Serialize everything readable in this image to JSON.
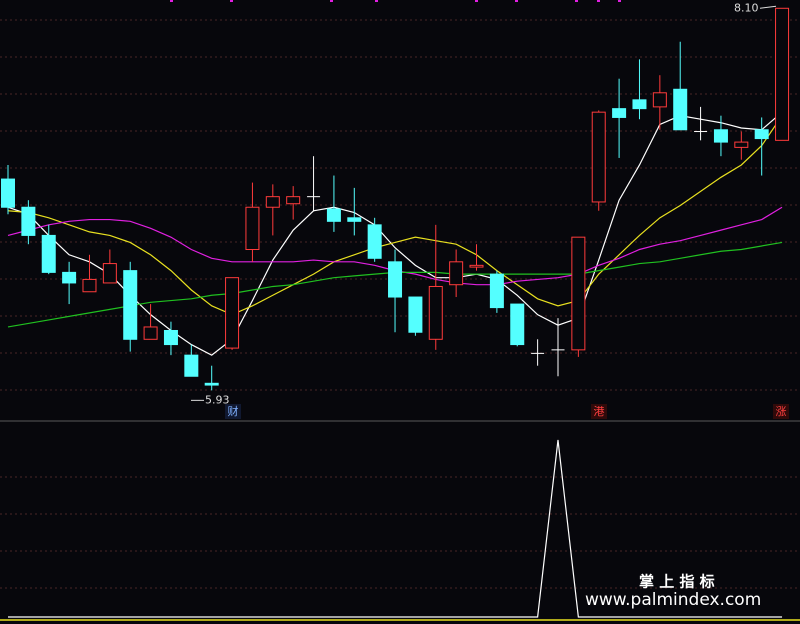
{
  "chart_data": [
    {
      "type": "candlestick",
      "ylim": [
        5.79,
        8.13
      ],
      "up_color": "#ff3b3b",
      "down_color": "#54ffff",
      "doji_color": "#ffffff",
      "candles": [
        [
          7.13,
          7.21,
          6.93,
          6.97
        ],
        [
          6.97,
          7.01,
          6.76,
          6.81
        ],
        [
          6.81,
          6.87,
          6.59,
          6.6
        ],
        [
          6.6,
          6.66,
          6.42,
          6.54
        ],
        [
          6.49,
          6.7,
          6.49,
          6.56
        ],
        [
          6.54,
          6.73,
          6.54,
          6.65
        ],
        [
          6.61,
          6.66,
          6.15,
          6.22
        ],
        [
          6.22,
          6.42,
          6.22,
          6.29
        ],
        [
          6.27,
          6.32,
          6.13,
          6.19
        ],
        [
          6.13,
          6.19,
          6.01,
          6.01
        ],
        [
          5.97,
          6.07,
          5.93,
          5.96
        ],
        [
          6.17,
          6.57,
          6.16,
          6.57
        ],
        [
          6.73,
          7.11,
          6.66,
          6.97
        ],
        [
          6.97,
          7.1,
          6.81,
          7.03
        ],
        [
          6.99,
          7.09,
          6.9,
          7.03
        ],
        [
          7.03,
          7.26,
          6.95,
          7.03
        ],
        [
          6.96,
          7.15,
          6.83,
          6.89
        ],
        [
          6.91,
          7.08,
          6.81,
          6.89
        ],
        [
          6.87,
          6.91,
          6.66,
          6.68
        ],
        [
          6.66,
          6.73,
          6.26,
          6.46
        ],
        [
          6.46,
          6.46,
          6.24,
          6.26
        ],
        [
          6.22,
          6.87,
          6.16,
          6.52
        ],
        [
          6.53,
          6.73,
          6.46,
          6.66
        ],
        [
          6.63,
          6.76,
          6.61,
          6.64
        ],
        [
          6.59,
          6.61,
          6.37,
          6.4
        ],
        [
          6.42,
          6.42,
          6.18,
          6.19
        ],
        [
          6.14,
          6.22,
          6.07,
          6.14
        ],
        [
          6.16,
          6.34,
          6.01,
          6.16
        ],
        [
          6.16,
          6.8,
          6.12,
          6.8
        ],
        [
          7.0,
          7.52,
          6.95,
          7.51
        ],
        [
          7.53,
          7.7,
          7.25,
          7.48
        ],
        [
          7.58,
          7.81,
          7.47,
          7.53
        ],
        [
          7.54,
          7.72,
          7.41,
          7.62
        ],
        [
          7.64,
          7.91,
          7.41,
          7.41
        ],
        [
          7.4,
          7.54,
          7.35,
          7.4
        ],
        [
          7.41,
          7.49,
          7.26,
          7.34
        ],
        [
          7.31,
          7.4,
          7.24,
          7.34
        ],
        [
          7.41,
          7.48,
          7.15,
          7.36
        ],
        [
          7.35,
          8.1,
          7.35,
          8.1
        ]
      ],
      "series": [
        {
          "color": "#ffffff",
          "values": [
            6.97,
            6.93,
            6.81,
            6.7,
            6.66,
            6.59,
            6.47,
            6.36,
            6.27,
            6.19,
            6.13,
            6.22,
            6.44,
            6.67,
            6.84,
            6.95,
            6.97,
            6.94,
            6.87,
            6.74,
            6.64,
            6.57,
            6.57,
            6.59,
            6.56,
            6.47,
            6.36,
            6.3,
            6.34,
            6.67,
            7.01,
            7.21,
            7.44,
            7.49,
            7.47,
            7.45,
            7.42,
            7.41,
            7.51
          ]
        },
        {
          "color": "#e8e020",
          "values": [
            6.95,
            6.94,
            6.91,
            6.87,
            6.83,
            6.81,
            6.77,
            6.7,
            6.61,
            6.5,
            6.41,
            6.36,
            6.41,
            6.47,
            6.53,
            6.59,
            6.66,
            6.7,
            6.74,
            6.77,
            6.8,
            6.78,
            6.76,
            6.7,
            6.61,
            6.53,
            6.45,
            6.41,
            6.44,
            6.59,
            6.7,
            6.81,
            6.91,
            6.98,
            7.06,
            7.14,
            7.21,
            7.32,
            7.49
          ]
        },
        {
          "color": "#e020e0",
          "values": [
            6.81,
            6.84,
            6.87,
            6.89,
            6.9,
            6.9,
            6.89,
            6.85,
            6.8,
            6.73,
            6.68,
            6.66,
            6.66,
            6.66,
            6.66,
            6.67,
            6.66,
            6.66,
            6.64,
            6.61,
            6.59,
            6.56,
            6.54,
            6.53,
            6.53,
            6.55,
            6.56,
            6.57,
            6.59,
            6.64,
            6.68,
            6.73,
            6.76,
            6.78,
            6.81,
            6.84,
            6.87,
            6.9,
            6.97
          ]
        },
        {
          "color": "#20c020",
          "values": [
            6.29,
            6.31,
            6.33,
            6.35,
            6.37,
            6.39,
            6.41,
            6.43,
            6.44,
            6.45,
            6.47,
            6.48,
            6.5,
            6.52,
            6.53,
            6.55,
            6.57,
            6.58,
            6.59,
            6.6,
            6.6,
            6.6,
            6.59,
            6.59,
            6.59,
            6.59,
            6.59,
            6.59,
            6.59,
            6.61,
            6.63,
            6.65,
            6.66,
            6.68,
            6.7,
            6.72,
            6.73,
            6.75,
            6.77
          ]
        }
      ],
      "low_label": 5.93,
      "high_label": {
        "value": 8.1,
        "label": "8.10"
      },
      "markers": [
        "财",
        "港",
        "涨"
      ]
    },
    {
      "type": "line",
      "ylim": [
        0,
        1
      ],
      "series": [
        {
          "color": "#ffffff",
          "values": [
            0,
            0,
            0,
            0,
            0,
            0,
            0,
            0,
            0,
            0,
            0,
            0,
            0,
            0,
            0,
            0,
            0,
            0,
            0,
            0,
            0,
            0,
            0,
            0,
            0,
            0,
            0,
            1,
            0,
            0,
            0,
            0,
            0,
            0,
            0,
            0,
            0,
            0,
            0
          ]
        }
      ],
      "watermark": {
        "title": "掌 上 指 标",
        "url": "www.palmindex.com"
      }
    }
  ]
}
